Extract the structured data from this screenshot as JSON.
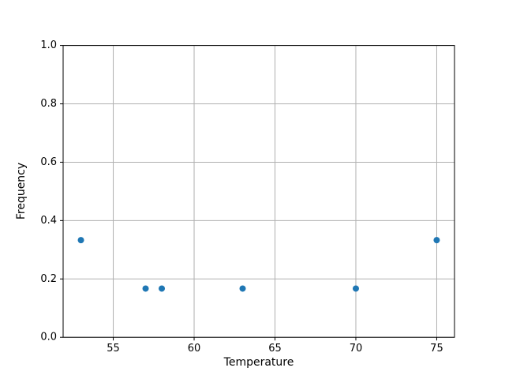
{
  "figure": {
    "background": "#ffffff"
  },
  "chart_data": {
    "type": "scatter",
    "title": "",
    "xlabel": "Temperature",
    "ylabel": "Frequency",
    "xlim": [
      51.9,
      76.1
    ],
    "ylim": [
      0.0,
      1.0
    ],
    "xticks": [
      {
        "value": 55,
        "label": "55"
      },
      {
        "value": 60,
        "label": "60"
      },
      {
        "value": 65,
        "label": "65"
      },
      {
        "value": 70,
        "label": "70"
      },
      {
        "value": 75,
        "label": "75"
      }
    ],
    "yticks": [
      {
        "value": 0.0,
        "label": "0.0"
      },
      {
        "value": 0.2,
        "label": "0.2"
      },
      {
        "value": 0.4,
        "label": "0.4"
      },
      {
        "value": 0.6,
        "label": "0.6"
      },
      {
        "value": 0.8,
        "label": "0.8"
      },
      {
        "value": 1.0,
        "label": "1.0"
      }
    ],
    "grid": true,
    "grid_color": "#b0b0b0",
    "spine_color": "#000000",
    "marker_color": "#1f77b4",
    "marker_radius": 4,
    "legend": null,
    "points": [
      {
        "x": 53,
        "y": 0.333
      },
      {
        "x": 57,
        "y": 0.167
      },
      {
        "x": 58,
        "y": 0.167
      },
      {
        "x": 63,
        "y": 0.167
      },
      {
        "x": 70,
        "y": 0.167
      },
      {
        "x": 75,
        "y": 0.333
      }
    ]
  }
}
